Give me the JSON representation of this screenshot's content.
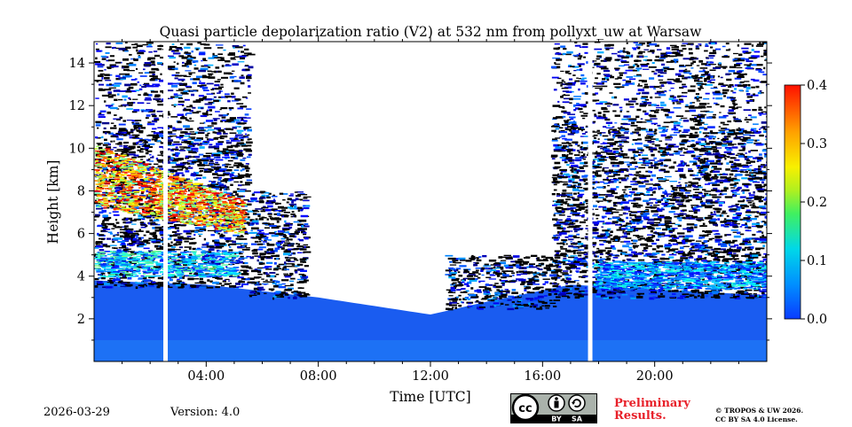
{
  "chart_data": {
    "type": "heatmap",
    "title": "Quasi particle depolarization ratio (V2) at 532 nm from pollyxt_uw at Warsaw",
    "xlabel": "Time [UTC]",
    "ylabel": "Height [km]",
    "xlim": [
      0,
      24
    ],
    "ylim": [
      0,
      15
    ],
    "x_ticks": [
      4,
      8,
      12,
      16,
      20
    ],
    "x_tick_labels": [
      "04:00",
      "08:00",
      "12:00",
      "16:00",
      "20:00"
    ],
    "y_ticks": [
      2,
      4,
      6,
      8,
      10,
      12,
      14
    ],
    "y_tick_labels": [
      "2",
      "4",
      "6",
      "8",
      "10",
      "12",
      "14"
    ],
    "colorbar": {
      "range": [
        0.0,
        0.4
      ],
      "ticks": [
        0.0,
        0.1,
        0.2,
        0.3,
        0.4
      ],
      "tick_labels": [
        "0.0",
        "0.1",
        "0.2",
        "0.3",
        "0.4"
      ],
      "colormap": "jet"
    },
    "gaps_hours": [
      2.55,
      17.7
    ],
    "boundary_layer_top_km": [
      {
        "t": 0,
        "h": 3.8
      },
      {
        "t": 4,
        "h": 3.6
      },
      {
        "t": 8,
        "h": 3.0
      },
      {
        "t": 12,
        "h": 2.2
      },
      {
        "t": 14,
        "h": 2.8
      },
      {
        "t": 17,
        "h": 3.6
      },
      {
        "t": 24,
        "h": 3.1
      }
    ],
    "features": [
      {
        "name": "dust-layer-morning",
        "t_start": 0.0,
        "t_end": 5.2,
        "h_base": 6.0,
        "h_top": 10.2,
        "depol": 0.28
      },
      {
        "name": "elevated-aerosol-evening",
        "t_start": 17.8,
        "t_end": 24.0,
        "h_base": 4.0,
        "h_top": 10.0,
        "depol": 0.1
      },
      {
        "name": "boundary-layer",
        "t_start": 0.0,
        "t_end": 24.0,
        "h_base": 0.0,
        "h_top": 3.5,
        "depol": 0.02
      }
    ]
  },
  "footer": {
    "date": "2026-03-29",
    "version": "Version: 4.0",
    "preliminary": [
      "Preliminary",
      "Results."
    ],
    "copyright": [
      "© TROPOS & UW 2026.",
      "CC BY SA 4.0 License."
    ],
    "license_badge": [
      "cc",
      "BY",
      "SA"
    ]
  }
}
